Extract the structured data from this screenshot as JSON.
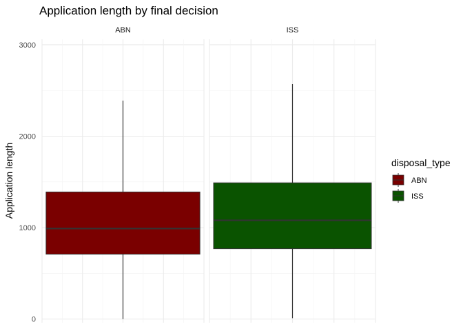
{
  "chart_data": {
    "type": "boxplot",
    "title": "Application length by final decision",
    "xlabel": "",
    "ylabel": "Application length",
    "ylim": [
      -40,
      3060
    ],
    "yticks": [
      0,
      1000,
      2000,
      3000
    ],
    "grid": true,
    "legend_position": "right",
    "legend_title": "disposal_type",
    "facets": [
      {
        "label": "ABN",
        "fill": "#7a0000",
        "stats": {
          "min": 0,
          "q1": 710,
          "median": 990,
          "q3": 1390,
          "max": 2390
        }
      },
      {
        "label": "ISS",
        "fill": "#0a5300",
        "stats": {
          "min": 10,
          "q1": 770,
          "median": 1080,
          "q3": 1490,
          "max": 2570
        }
      }
    ],
    "legend": [
      {
        "label": "ABN",
        "fill": "#7a0000"
      },
      {
        "label": "ISS",
        "fill": "#0a5300"
      }
    ]
  }
}
